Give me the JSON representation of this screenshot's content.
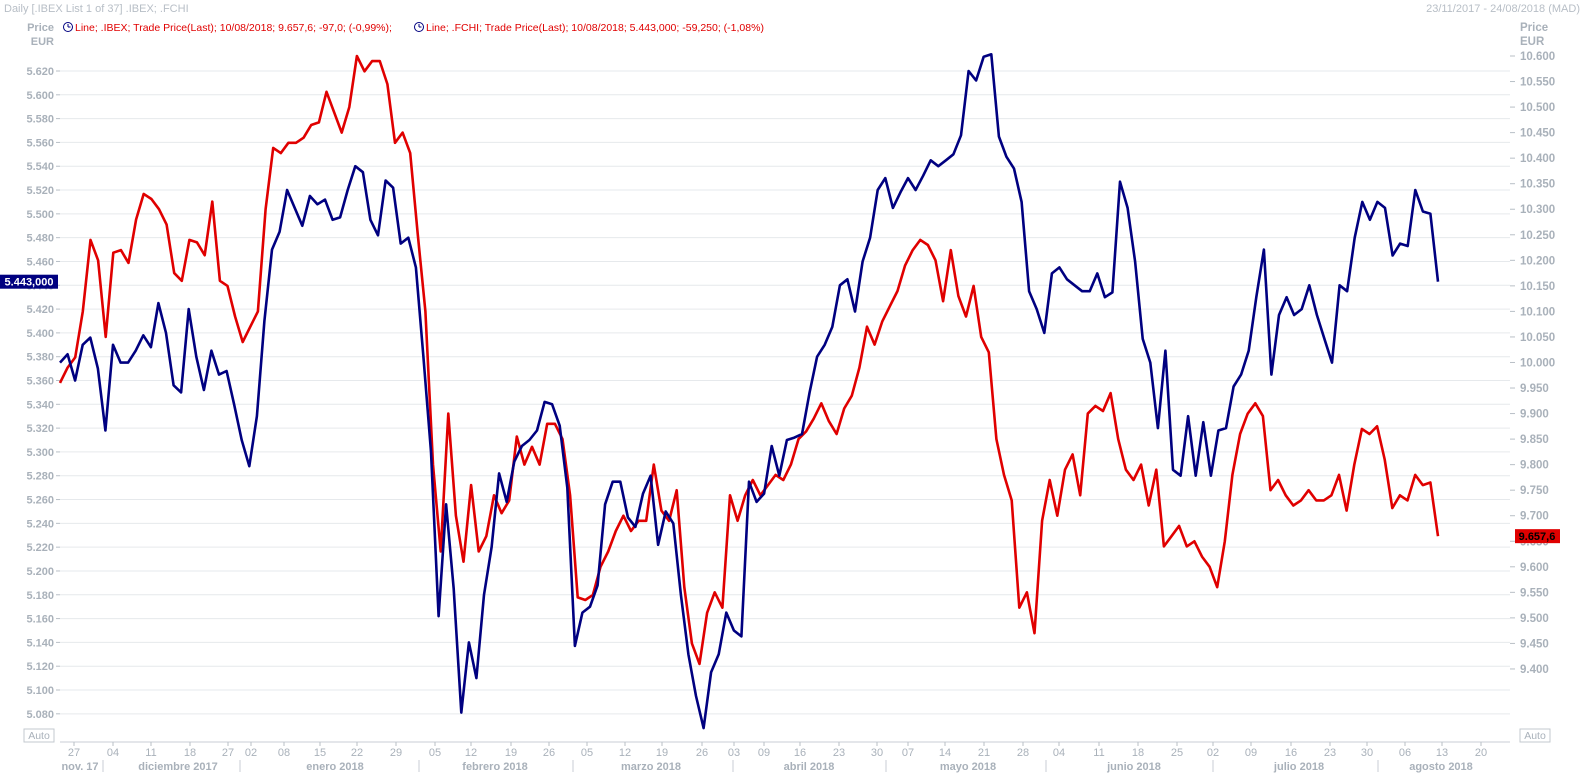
{
  "header": {
    "title": "Daily [.IBEX List 1 of 37] .IBEX; .FCHI",
    "date_range": "23/11/2017 - 24/08/2018 (MAD)"
  },
  "legend": [
    {
      "text": "Line; .IBEX; Trade Price(Last);  10/08/2018; 9.657,6; -97,0; (-0,99%);",
      "color": "#e00000",
      "icon": "clock-icon"
    },
    {
      "text": "Line; .FCHI; Trade Price(Last);  10/08/2018; 5.443,000; -59,250; (-1,08%)",
      "color": "#e00000",
      "icon": "clock-icon"
    }
  ],
  "axis_left": {
    "title_line1": "Price",
    "title_line2": "EUR",
    "ticks": [
      "5.620",
      "5.600",
      "5.580",
      "5.560",
      "5.540",
      "5.520",
      "5.500",
      "5.480",
      "5.460",
      "5.440",
      "5.420",
      "5.400",
      "5.380",
      "5.360",
      "5.340",
      "5.320",
      "5.300",
      "5.280",
      "5.260",
      "5.240",
      "5.220",
      "5.200",
      "5.180",
      "5.160",
      "5.140",
      "5.120",
      "5.100",
      "5.080"
    ],
    "current_value_label": "5.443,000",
    "auto_label": "Auto"
  },
  "axis_right": {
    "title_line1": "Price",
    "title_line2": "EUR",
    "ticks": [
      "10.600",
      "10.550",
      "10.500",
      "10.450",
      "10.400",
      "10.350",
      "10.300",
      "10.250",
      "10.200",
      "10.150",
      "10.100",
      "10.050",
      "10.000",
      "9.950",
      "9.900",
      "9.850",
      "9.800",
      "9.750",
      "9.700",
      "9.650",
      "9.600",
      "9.550",
      "9.500",
      "9.450",
      "9.400"
    ],
    "current_value_label": "9.657,6",
    "auto_label": "Auto"
  },
  "axis_x": {
    "day_ticks": [
      "27",
      "04",
      "11",
      "18",
      "27",
      "02",
      "08",
      "15",
      "22",
      "29",
      "05",
      "12",
      "19",
      "26",
      "05",
      "12",
      "19",
      "26",
      "03",
      "09",
      "16",
      "23",
      "30",
      "07",
      "14",
      "21",
      "28",
      "04",
      "11",
      "18",
      "25",
      "02",
      "09",
      "16",
      "23",
      "30",
      "06",
      "13",
      "20"
    ],
    "months": [
      "nov. 17",
      "diciembre 2017",
      "enero 2018",
      "febrero 2018",
      "marzo 2018",
      "abril 2018",
      "mayo 2018",
      "junio 2018",
      "julio 2018",
      "agosto 2018"
    ]
  },
  "colors": {
    "ibex": "#e00000",
    "fchi": "#000080",
    "grid": "#e6e9ec",
    "axis_text": "#a9b1ba"
  },
  "chart_data": {
    "type": "line",
    "x_start": "2017-11-24",
    "x_end": "2018-08-10",
    "series": [
      {
        "name": ".IBEX",
        "axis": "right",
        "color": "#e00000",
        "values": [
          9960,
          9990,
          10010,
          10100,
          10240,
          10200,
          10050,
          10215,
          10220,
          10195,
          10280,
          10330,
          10320,
          10300,
          10270,
          10175,
          10160,
          10240,
          10235,
          10210,
          10315,
          10160,
          10150,
          10090,
          10040,
          10070,
          10100,
          10300,
          10420,
          10410,
          10430,
          10430,
          10440,
          10465,
          10470,
          10530,
          10490,
          10450,
          10500,
          10600,
          10570,
          10590,
          10590,
          10545,
          10430,
          10450,
          10410,
          10250,
          10100,
          9800,
          9630,
          9900,
          9700,
          9610,
          9760,
          9630,
          9660,
          9740,
          9705,
          9730,
          9855,
          9800,
          9835,
          9800,
          9880,
          9880,
          9850,
          9740,
          9540,
          9535,
          9545,
          9600,
          9630,
          9670,
          9700,
          9670,
          9690,
          9690,
          9800,
          9710,
          9690,
          9750,
          9560,
          9450,
          9410,
          9510,
          9550,
          9520,
          9740,
          9690,
          9740,
          9770,
          9740,
          9760,
          9780,
          9770,
          9800,
          9850,
          9865,
          9890,
          9920,
          9885,
          9860,
          9910,
          9935,
          9990,
          10070,
          10035,
          10080,
          10110,
          10140,
          10190,
          10220,
          10240,
          10230,
          10200,
          10120,
          10220,
          10130,
          10090,
          10150,
          10050,
          10020,
          9850,
          9780,
          9730,
          9520,
          9550,
          9470,
          9690,
          9770,
          9700,
          9790,
          9820,
          9740,
          9900,
          9915,
          9905,
          9940,
          9850,
          9790,
          9770,
          9800,
          9720,
          9790,
          9640,
          9660,
          9680,
          9640,
          9650,
          9620,
          9600,
          9560,
          9650,
          9780,
          9860,
          9900,
          9920,
          9895,
          9750,
          9770,
          9740,
          9720,
          9730,
          9750,
          9730,
          9730,
          9740,
          9780,
          9710,
          9800,
          9870,
          9860,
          9875,
          9810,
          9715,
          9740,
          9730,
          9780,
          9760,
          9765,
          9660
        ]
      },
      {
        "name": ".FCHI",
        "axis": "left",
        "color": "#000080",
        "values": [
          5375,
          5382,
          5360,
          5390,
          5396,
          5370,
          5318,
          5390,
          5375,
          5375,
          5385,
          5398,
          5388,
          5425,
          5400,
          5356,
          5350,
          5420,
          5380,
          5352,
          5385,
          5365,
          5368,
          5340,
          5310,
          5288,
          5330,
          5410,
          5470,
          5485,
          5520,
          5505,
          5490,
          5515,
          5508,
          5512,
          5495,
          5497,
          5520,
          5540,
          5535,
          5495,
          5482,
          5528,
          5522,
          5475,
          5480,
          5455,
          5380,
          5300,
          5162,
          5256,
          5185,
          5081,
          5140,
          5110,
          5180,
          5220,
          5282,
          5258,
          5292,
          5305,
          5310,
          5318,
          5342,
          5340,
          5322,
          5270,
          5137,
          5165,
          5170,
          5188,
          5256,
          5275,
          5275,
          5245,
          5237,
          5265,
          5280,
          5222,
          5250,
          5240,
          5180,
          5130,
          5095,
          5068,
          5115,
          5130,
          5165,
          5150,
          5145,
          5275,
          5258,
          5265,
          5305,
          5280,
          5310,
          5312,
          5315,
          5350,
          5380,
          5390,
          5405,
          5440,
          5445,
          5418,
          5460,
          5480,
          5520,
          5530,
          5505,
          5518,
          5530,
          5520,
          5532,
          5545,
          5540,
          5545,
          5550,
          5566,
          5620,
          5612,
          5632,
          5634,
          5565,
          5548,
          5538,
          5510,
          5435,
          5420,
          5400,
          5450,
          5455,
          5445,
          5440,
          5435,
          5435,
          5450,
          5430,
          5434,
          5527,
          5505,
          5460,
          5395,
          5375,
          5320,
          5385,
          5285,
          5280,
          5330,
          5280,
          5325,
          5280,
          5318,
          5320,
          5355,
          5365,
          5385,
          5430,
          5470,
          5365,
          5415,
          5430,
          5415,
          5420,
          5440,
          5415,
          5395,
          5375,
          5440,
          5435,
          5480,
          5510,
          5495,
          5510,
          5505,
          5465,
          5475,
          5473,
          5520,
          5502,
          5500,
          5443
        ]
      }
    ],
    "ylim_left": [
      5060,
      5640
    ],
    "ylim_right": [
      9380,
      10640
    ],
    "grid": true,
    "legend_position": "top-left"
  }
}
